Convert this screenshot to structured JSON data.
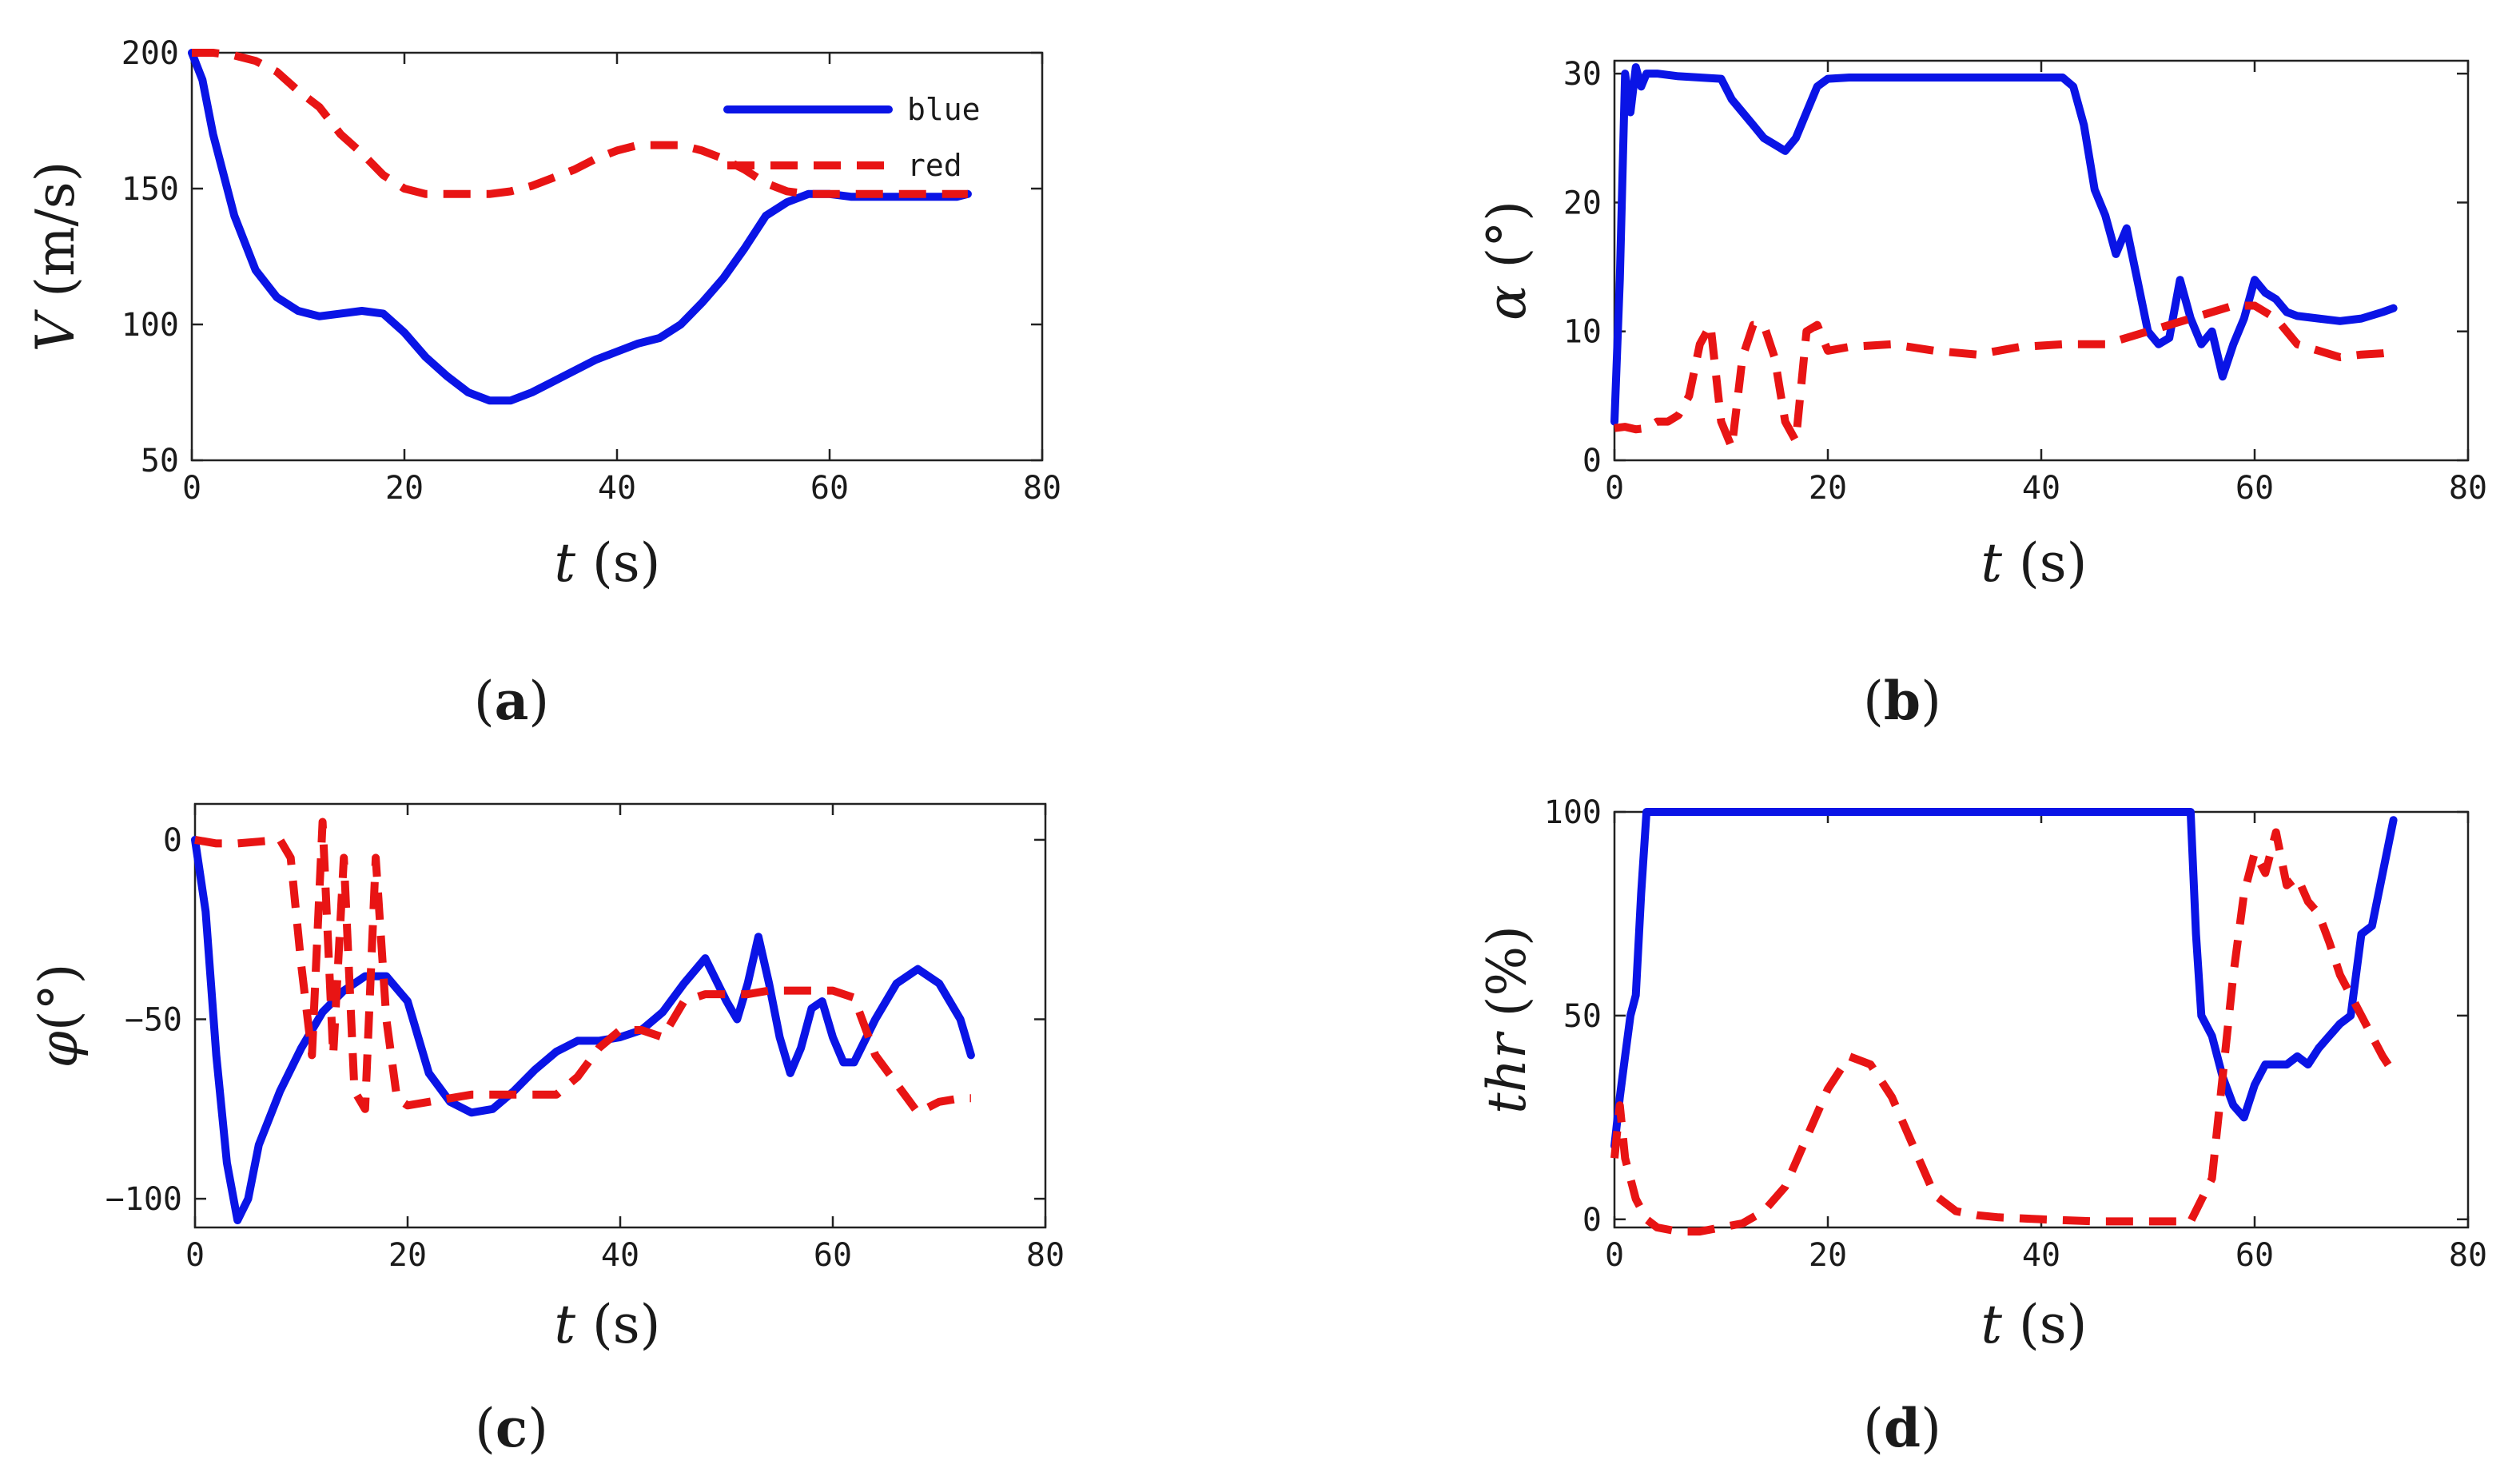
{
  "colors": {
    "blue": "#0a14e6",
    "red": "#e81414"
  },
  "chart_data": [
    {
      "id": "a",
      "type": "line",
      "caption_letter": "a",
      "xlabel_var": "t",
      "xlabel_unit": " (s)",
      "ylabel_var": "V",
      "ylabel_unit": " (m/s)",
      "xlim": [
        0,
        80
      ],
      "ylim": [
        50,
        200
      ],
      "xticks": [
        0,
        20,
        40,
        60,
        80
      ],
      "yticks": [
        50,
        100,
        150,
        200
      ],
      "legend": [
        "blue",
        "red"
      ],
      "series": [
        {
          "name": "blue",
          "x": [
            0,
            1,
            2,
            3,
            4,
            6,
            8,
            10,
            12,
            14,
            16,
            18,
            20,
            22,
            24,
            26,
            28,
            30,
            32,
            34,
            36,
            38,
            40,
            42,
            44,
            46,
            48,
            50,
            52,
            54,
            56,
            58,
            60,
            62,
            64,
            66,
            68,
            70,
            72,
            73
          ],
          "y": [
            200,
            190,
            170,
            155,
            140,
            120,
            110,
            105,
            103,
            104,
            105,
            104,
            97,
            88,
            81,
            75,
            72,
            72,
            75,
            79,
            83,
            87,
            90,
            93,
            95,
            100,
            108,
            117,
            128,
            140,
            145,
            148,
            148,
            147,
            147,
            147,
            147,
            147,
            147,
            148
          ]
        },
        {
          "name": "red",
          "x": [
            0,
            2,
            4,
            6,
            8,
            10,
            12,
            14,
            16,
            18,
            20,
            22,
            24,
            26,
            28,
            30,
            32,
            34,
            36,
            38,
            40,
            42,
            44,
            46,
            48,
            50,
            52,
            54,
            56,
            58,
            60,
            62,
            64,
            66,
            68,
            70,
            72,
            73
          ],
          "y": [
            200,
            200,
            199,
            197,
            193,
            186,
            180,
            170,
            163,
            155,
            150,
            148,
            148,
            148,
            148,
            149,
            151,
            154,
            157,
            161,
            164,
            166,
            166,
            166,
            164,
            161,
            157,
            152,
            149,
            148,
            148,
            148,
            148,
            148,
            148,
            148,
            148,
            148
          ]
        }
      ]
    },
    {
      "id": "b",
      "type": "line",
      "caption_letter": "b",
      "xlabel_var": "t",
      "xlabel_unit": " (s)",
      "ylabel_var": "α",
      "ylabel_unit": " (°)",
      "xlim": [
        0,
        80
      ],
      "ylim": [
        0,
        31
      ],
      "xticks": [
        0,
        20,
        40,
        60,
        80
      ],
      "yticks": [
        0,
        10,
        20,
        30
      ],
      "series": [
        {
          "name": "blue",
          "x": [
            0,
            0.5,
            1,
            1.5,
            2,
            2.5,
            3,
            4,
            6,
            8,
            10,
            11,
            12,
            13,
            14,
            15,
            16,
            17,
            18,
            19,
            20,
            22,
            26,
            30,
            34,
            38,
            42,
            43,
            44,
            45,
            46,
            47,
            48,
            49,
            50,
            51,
            52,
            53,
            54,
            55,
            56,
            57,
            58,
            59,
            60,
            61,
            62,
            63,
            64,
            66,
            68,
            70,
            72,
            73
          ],
          "y": [
            3,
            14,
            30,
            27,
            30.5,
            29,
            30,
            30,
            29.8,
            29.7,
            29.6,
            28,
            27,
            26,
            25,
            24.5,
            24,
            25,
            27,
            29,
            29.6,
            29.7,
            29.7,
            29.7,
            29.7,
            29.7,
            29.7,
            29,
            26,
            21,
            19,
            16,
            18,
            14,
            10,
            9,
            9.5,
            14,
            11,
            9,
            10,
            6.5,
            9,
            11,
            14,
            13,
            12.5,
            11.5,
            11.2,
            11,
            10.8,
            11,
            11.5,
            11.8
          ]
        },
        {
          "name": "red",
          "x": [
            0,
            1,
            2,
            3,
            4,
            5,
            6,
            7,
            8,
            9,
            10,
            11,
            12,
            13,
            14,
            15,
            16,
            17,
            18,
            19,
            20,
            22,
            26,
            30,
            34,
            38,
            42,
            46,
            50,
            54,
            58,
            60,
            62,
            64,
            66,
            68,
            70,
            72,
            73
          ],
          "y": [
            2.5,
            2.6,
            2.4,
            2.5,
            3,
            3,
            3.5,
            5,
            9,
            10.5,
            3,
            1,
            8,
            10.5,
            10.5,
            8,
            3,
            1.5,
            10,
            10.5,
            8.5,
            8.8,
            9,
            8.5,
            8.2,
            8.8,
            9,
            9,
            10,
            11,
            12,
            12,
            11,
            9,
            8.5,
            8,
            8.2,
            8.3,
            8.4
          ]
        }
      ]
    },
    {
      "id": "c",
      "type": "line",
      "caption_letter": "c",
      "xlabel_var": "t",
      "xlabel_unit": " (s)",
      "ylabel_var": "φ",
      "ylabel_unit": "(°)",
      "xlim": [
        0,
        80
      ],
      "ylim": [
        -108,
        10
      ],
      "xticks": [
        0,
        20,
        40,
        60,
        80
      ],
      "yticks": [
        -100,
        -50,
        0
      ],
      "series": [
        {
          "name": "blue",
          "x": [
            0,
            1,
            2,
            3,
            4,
            5,
            6,
            8,
            10,
            12,
            14,
            16,
            18,
            20,
            22,
            24,
            26,
            28,
            30,
            32,
            34,
            36,
            38,
            40,
            42,
            44,
            46,
            48,
            50,
            51,
            52,
            53,
            54,
            55,
            56,
            57,
            58,
            59,
            60,
            61,
            62,
            64,
            66,
            68,
            70,
            72,
            73
          ],
          "y": [
            0,
            -20,
            -60,
            -90,
            -106,
            -100,
            -85,
            -70,
            -58,
            -48,
            -42,
            -38,
            -38,
            -45,
            -65,
            -73,
            -76,
            -75,
            -70,
            -64,
            -59,
            -56,
            -56,
            -55,
            -53,
            -48,
            -40,
            -33,
            -45,
            -50,
            -40,
            -27,
            -40,
            -55,
            -65,
            -58,
            -47,
            -45,
            -55,
            -62,
            -62,
            -50,
            -40,
            -36,
            -40,
            -50,
            -60
          ]
        },
        {
          "name": "red",
          "x": [
            0,
            2,
            4,
            6,
            8,
            9,
            10,
            11,
            12,
            13,
            14,
            15,
            16,
            17,
            18,
            19,
            20,
            22,
            24,
            26,
            28,
            30,
            32,
            34,
            36,
            38,
            40,
            42,
            44,
            46,
            48,
            50,
            52,
            54,
            56,
            58,
            60,
            62,
            64,
            66,
            68,
            70,
            72,
            73
          ],
          "y": [
            0,
            -1,
            -1,
            -0.5,
            0,
            -5,
            -35,
            -60,
            5,
            -60,
            -5,
            -70,
            -75,
            -5,
            -50,
            -72,
            -74,
            -73,
            -72,
            -71,
            -71,
            -71,
            -71,
            -71,
            -66,
            -58,
            -53,
            -53,
            -55,
            -45,
            -43,
            -43,
            -43,
            -42,
            -42,
            -42,
            -42,
            -44,
            -60,
            -68,
            -76,
            -73,
            -72,
            -72
          ]
        }
      ]
    },
    {
      "id": "d",
      "type": "line",
      "caption_letter": "d",
      "xlabel_var": "t",
      "xlabel_unit": " (s)",
      "ylabel_var": "thr",
      "ylabel_unit": " (%)",
      "xlim": [
        0,
        80
      ],
      "ylim": [
        -2,
        100
      ],
      "xticks": [
        0,
        20,
        40,
        60,
        80
      ],
      "yticks": [
        0,
        50,
        100
      ],
      "series": [
        {
          "name": "blue",
          "x": [
            0,
            0.5,
            1,
            1.5,
            2,
            2.5,
            3,
            10,
            20,
            30,
            40,
            50,
            54,
            54.5,
            55,
            56,
            57,
            58,
            59,
            60,
            61,
            62,
            63,
            64,
            65,
            66,
            67,
            68,
            69,
            70,
            71,
            72,
            73
          ],
          "y": [
            18,
            30,
            40,
            50,
            55,
            80,
            100,
            100,
            100,
            100,
            100,
            100,
            100,
            70,
            50,
            45,
            35,
            28,
            25,
            33,
            38,
            38,
            38,
            40,
            38,
            42,
            45,
            48,
            50,
            70,
            72,
            85,
            98
          ]
        },
        {
          "name": "red",
          "x": [
            0,
            0.5,
            1,
            2,
            3,
            4,
            6,
            8,
            10,
            12,
            14,
            16,
            18,
            20,
            22,
            24,
            26,
            28,
            30,
            32,
            34,
            36,
            40,
            45,
            50,
            54,
            56,
            58,
            59,
            60,
            61,
            62,
            63,
            64,
            65,
            66,
            67,
            68,
            69,
            70,
            71,
            72,
            73
          ],
          "y": [
            15,
            28,
            15,
            5,
            0,
            -2,
            -3,
            -3,
            -2,
            -1,
            2,
            8,
            20,
            32,
            40,
            38,
            30,
            18,
            6,
            2,
            1,
            0.5,
            0,
            -0.5,
            -0.5,
            -0.5,
            10,
            60,
            80,
            90,
            85,
            95,
            82,
            84,
            78,
            75,
            68,
            60,
            55,
            50,
            45,
            40,
            36
          ]
        }
      ]
    }
  ]
}
